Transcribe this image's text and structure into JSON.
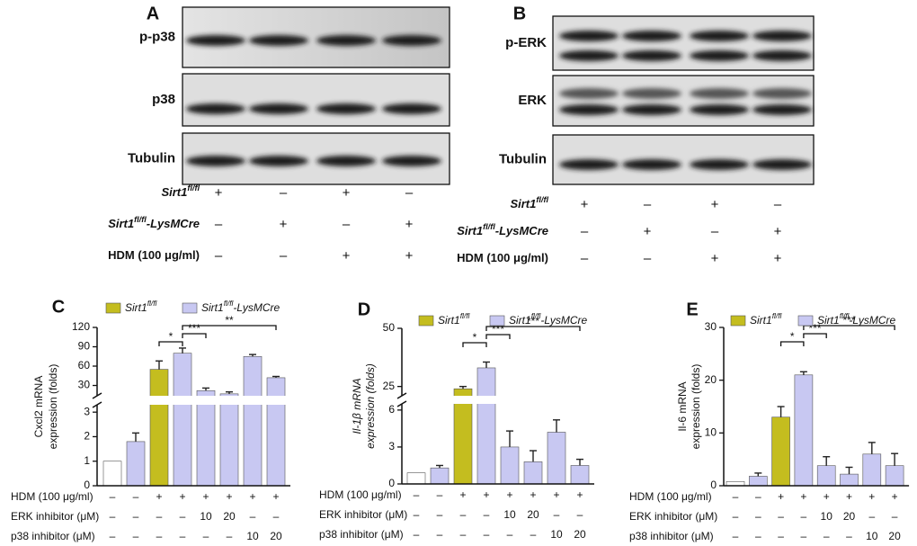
{
  "blots": [
    {
      "panel": "A",
      "rows": [
        "p-p38",
        "p38",
        "Tubulin"
      ],
      "conditions": [
        {
          "name": "Sirt1",
          "sup": "fl/fl",
          "values": [
            "+",
            "–",
            "+",
            "–"
          ]
        },
        {
          "name": "Sirt1",
          "sup": "fl/fl",
          "suffix": "-LysMCre",
          "values": [
            "–",
            "+",
            "–",
            "+"
          ]
        },
        {
          "name": "HDM (100 μg/ml)",
          "values": [
            "–",
            "–",
            "+",
            "+"
          ]
        }
      ]
    },
    {
      "panel": "B",
      "rows": [
        "p-ERK",
        "ERK",
        "Tubulin"
      ],
      "conditions": [
        {
          "name": "Sirt1",
          "sup": "fl/fl",
          "values": [
            "+",
            "–",
            "+",
            "–"
          ]
        },
        {
          "name": "Sirt1",
          "sup": "fl/fl",
          "suffix": "-LysMCre",
          "values": [
            "–",
            "+",
            "–",
            "+"
          ]
        },
        {
          "name": "HDM (100 μg/ml)",
          "values": [
            "–",
            "–",
            "+",
            "+"
          ]
        }
      ]
    }
  ],
  "chart_data": [
    {
      "type": "bar",
      "panel": "C",
      "ylabel": [
        "Cxcl2 mRNA",
        "expression (folds)"
      ],
      "series": [
        {
          "name": "Sirt1",
          "sup": "fl/fl",
          "color": "#c4bd1f"
        },
        {
          "name": "Sirt1",
          "sup": "fl/fl",
          "suffix": "-LysMCre",
          "color": "#c8c8f2"
        }
      ],
      "values": [
        1.0,
        1.8,
        55,
        80,
        22,
        17,
        75,
        42
      ],
      "errors": [
        0,
        0.35,
        13,
        8,
        4,
        3,
        3,
        2
      ],
      "bar_colors": [
        "#ffffff",
        "#c8c8f2",
        "#c4bd1f",
        "#c8c8f2",
        "#c8c8f2",
        "#c8c8f2",
        "#c8c8f2",
        "#c8c8f2"
      ],
      "ylim": [
        0,
        120
      ],
      "y_break": [
        3.3,
        14
      ],
      "yticks": [
        0,
        1,
        2,
        3,
        30,
        60,
        90,
        120
      ],
      "significance": [
        {
          "from": 2,
          "to": 3,
          "label": "*"
        },
        {
          "from": 3,
          "to": 4,
          "label": "***"
        },
        {
          "from": 3,
          "to": 7,
          "label": "**"
        }
      ],
      "conditions": [
        {
          "label": "HDM (100 μg/ml)",
          "values": [
            "–",
            "–",
            "+",
            "+",
            "+",
            "+",
            "+",
            "+"
          ]
        },
        {
          "label": "ERK inhibitor  (μM)",
          "values": [
            "–",
            "–",
            "–",
            "–",
            "10",
            "20",
            "–",
            "–"
          ]
        },
        {
          "label": "p38 inhibitor  (μM)",
          "values": [
            "–",
            "–",
            "–",
            "–",
            "–",
            "–",
            "10",
            "20"
          ]
        }
      ]
    },
    {
      "type": "bar",
      "panel": "D",
      "ylabel": [
        "Il-1β mRNA",
        "expression (folds)"
      ],
      "series": [
        {
          "name": "Sirt1",
          "sup": "fl/fl",
          "color": "#c4bd1f"
        },
        {
          "name": "Sirt1",
          "sup": "fl/fl",
          "suffix": "-LysMCre",
          "color": "#c8c8f2"
        }
      ],
      "values": [
        0.9,
        1.3,
        24,
        33,
        3.0,
        1.8,
        4.2,
        1.5
      ],
      "errors": [
        0,
        0.2,
        1,
        2.5,
        1.3,
        0.9,
        1.0,
        0.5
      ],
      "bar_colors": [
        "#ffffff",
        "#c8c8f2",
        "#c4bd1f",
        "#c8c8f2",
        "#c8c8f2",
        "#c8c8f2",
        "#c8c8f2",
        "#c8c8f2"
      ],
      "ylim": [
        0,
        50
      ],
      "y_break": [
        6.5,
        21
      ],
      "yticks": [
        0,
        3,
        6,
        25,
        50
      ],
      "significance": [
        {
          "from": 2,
          "to": 3,
          "label": "*"
        },
        {
          "from": 3,
          "to": 4,
          "label": "***"
        },
        {
          "from": 3,
          "to": 7,
          "label": "***"
        }
      ],
      "conditions": [
        {
          "label": "HDM (100 μg/ml)",
          "values": [
            "–",
            "–",
            "+",
            "+",
            "+",
            "+",
            "+",
            "+"
          ]
        },
        {
          "label": "ERK inhibitor  (μM)",
          "values": [
            "–",
            "–",
            "–",
            "–",
            "10",
            "20",
            "–",
            "–"
          ]
        },
        {
          "label": "p38 inhibitor  (μM)",
          "values": [
            "–",
            "–",
            "–",
            "–",
            "–",
            "–",
            "10",
            "20"
          ]
        }
      ]
    },
    {
      "type": "bar",
      "panel": "E",
      "ylabel": [
        "Il-6 mRNA",
        "expression (folds)"
      ],
      "series": [
        {
          "name": "Sirt1",
          "sup": "fl/fl",
          "color": "#c4bd1f"
        },
        {
          "name": "Sirt1",
          "sup": "fl/fl",
          "suffix": "-LysMCre",
          "color": "#c8c8f2"
        }
      ],
      "values": [
        0.8,
        1.8,
        13,
        21,
        3.8,
        2.2,
        6,
        3.8
      ],
      "errors": [
        0,
        0.6,
        2,
        0.6,
        1.7,
        1.3,
        2.2,
        2.3
      ],
      "bar_colors": [
        "#ffffff",
        "#c8c8f2",
        "#c4bd1f",
        "#c8c8f2",
        "#c8c8f2",
        "#c8c8f2",
        "#c8c8f2",
        "#c8c8f2"
      ],
      "ylim": [
        0,
        30
      ],
      "yticks": [
        0,
        10,
        20,
        30
      ],
      "significance": [
        {
          "from": 2,
          "to": 3,
          "label": "*"
        },
        {
          "from": 3,
          "to": 4,
          "label": "***"
        },
        {
          "from": 3,
          "to": 7,
          "label": "***"
        }
      ],
      "conditions": [
        {
          "label": "HDM (100 μg/ml)",
          "values": [
            "–",
            "–",
            "+",
            "+",
            "+",
            "+",
            "+",
            "+"
          ]
        },
        {
          "label": "ERK inhibitor  (μM)",
          "values": [
            "–",
            "–",
            "–",
            "–",
            "10",
            "20",
            "–",
            "–"
          ]
        },
        {
          "label": "p38 inhibitor  (μM)",
          "values": [
            "–",
            "–",
            "–",
            "–",
            "–",
            "–",
            "10",
            "20"
          ]
        }
      ]
    }
  ]
}
